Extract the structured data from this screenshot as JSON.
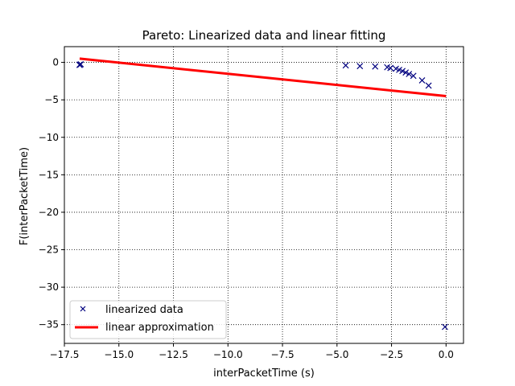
{
  "chart_data": {
    "type": "scatter",
    "title": "Pareto: Linearized data and linear fitting",
    "xlabel": "interPacketTime (s)",
    "ylabel": "F(interPacketTime)",
    "xlim": [
      -17.5,
      0.8
    ],
    "ylim": [
      -37.5,
      2.1
    ],
    "xticks": [
      -17.5,
      -15.0,
      -12.5,
      -10.0,
      -7.5,
      -5.0,
      -2.5,
      0.0
    ],
    "xtick_labels": [
      "−17.5",
      "−15.0",
      "−12.5",
      "−10.0",
      "−7.5",
      "−5.0",
      "−2.5",
      "0.0"
    ],
    "yticks": [
      0,
      -5,
      -10,
      -15,
      -20,
      -25,
      -30,
      -35
    ],
    "ytick_labels": [
      "0",
      "−5",
      "−10",
      "−15",
      "−20",
      "−25",
      "−30",
      "−35"
    ],
    "grid": true,
    "legend_position": "lower-left",
    "series": [
      {
        "name": "linearized data",
        "kind": "scatter",
        "marker": "x",
        "color": "#00007f",
        "points": [
          [
            -16.8,
            -0.3
          ],
          [
            -16.8,
            -0.35
          ],
          [
            -16.75,
            -0.25
          ],
          [
            -4.6,
            -0.4
          ],
          [
            -3.95,
            -0.5
          ],
          [
            -3.25,
            -0.55
          ],
          [
            -2.7,
            -0.65
          ],
          [
            -2.55,
            -0.75
          ],
          [
            -2.3,
            -0.85
          ],
          [
            -2.15,
            -1.0
          ],
          [
            -2.0,
            -1.15
          ],
          [
            -1.85,
            -1.35
          ],
          [
            -1.7,
            -1.55
          ],
          [
            -1.5,
            -1.8
          ],
          [
            -1.1,
            -2.4
          ],
          [
            -0.8,
            -3.1
          ],
          [
            -0.05,
            -35.3
          ]
        ]
      },
      {
        "name": "linear approximation",
        "kind": "line",
        "color": "#ff0000",
        "points": [
          [
            -16.8,
            0.5
          ],
          [
            0.0,
            -4.5
          ]
        ]
      }
    ]
  }
}
